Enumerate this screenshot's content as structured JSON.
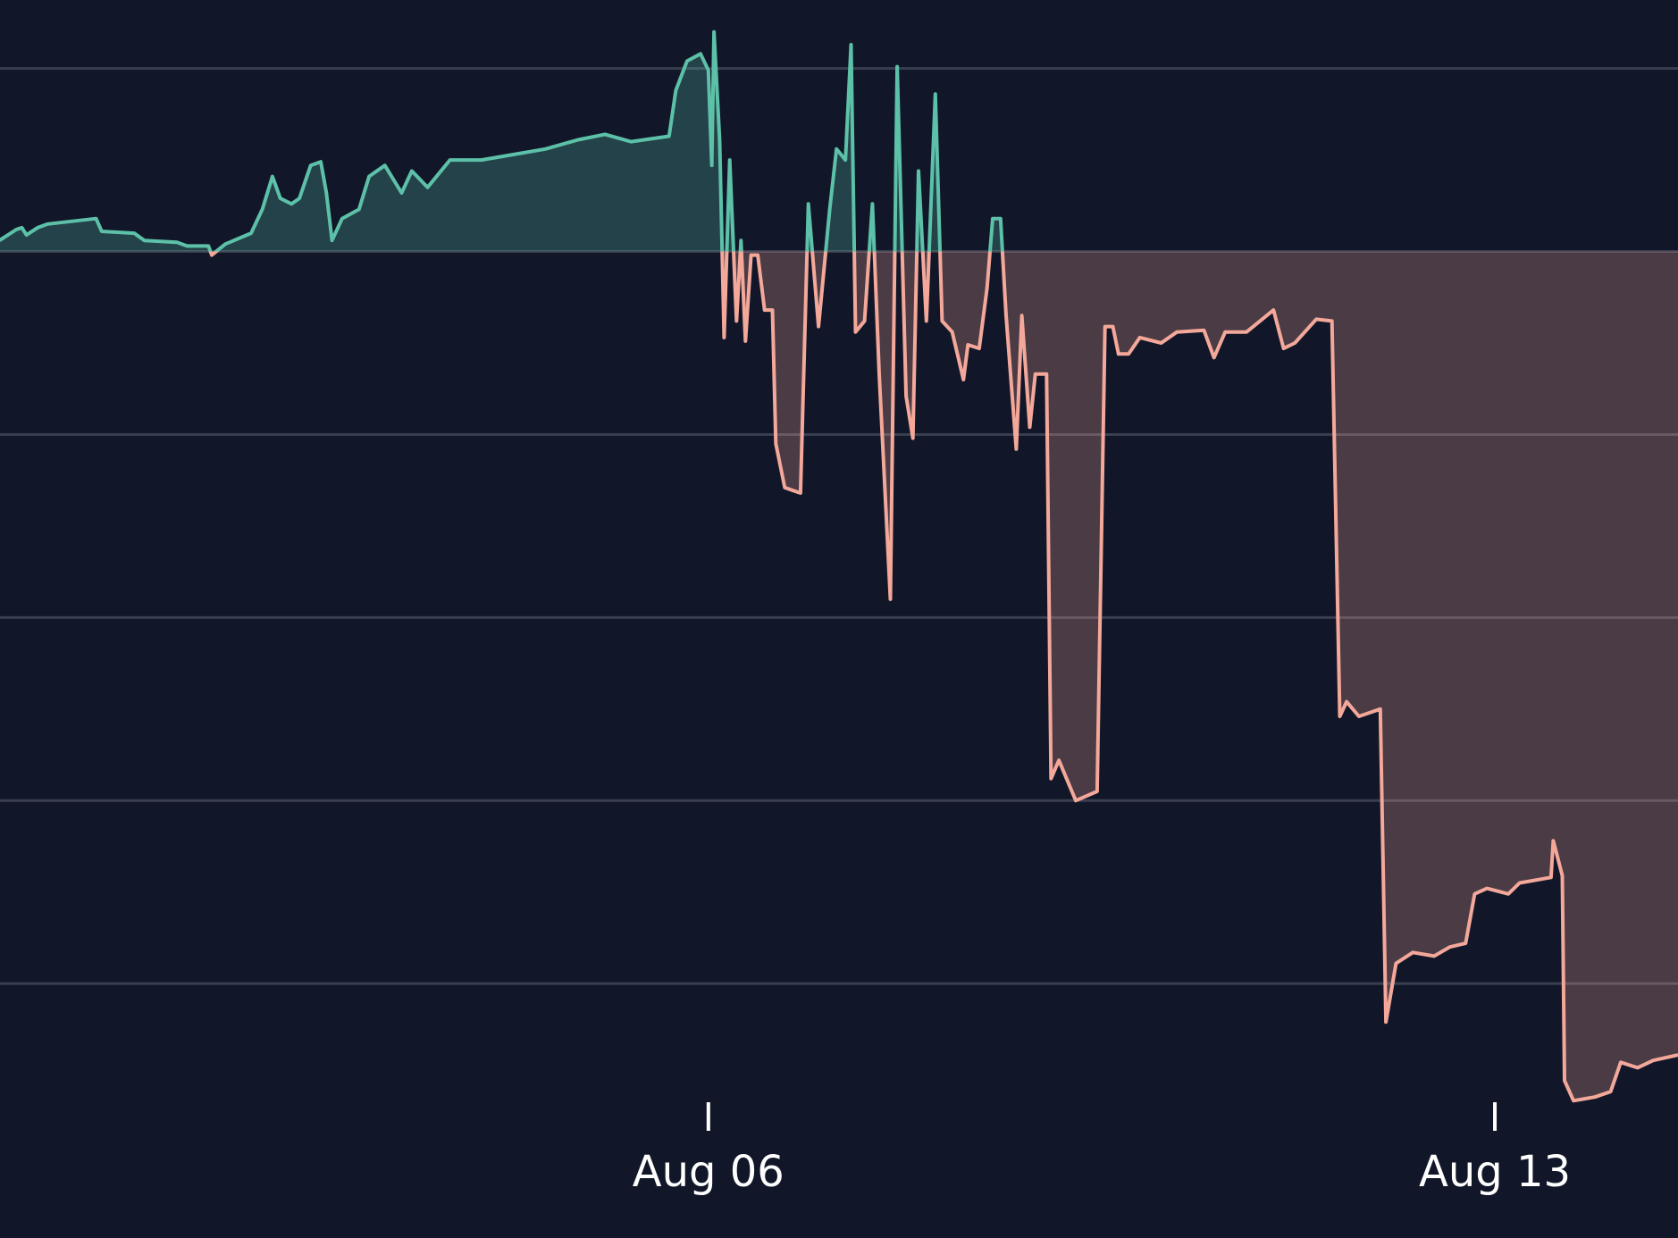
{
  "chart_data": {
    "type": "line",
    "x": [
      -0.31,
      -0.16,
      -0.11,
      -0.07,
      0.03,
      0.12,
      0.55,
      0.6,
      0.89,
      0.98,
      1.27,
      1.36,
      1.55,
      1.58,
      1.7,
      1.93,
      2.03,
      2.12,
      2.19,
      2.29,
      2.36,
      2.46,
      2.55,
      2.6,
      2.65,
      2.74,
      2.89,
      2.98,
      3.12,
      3.27,
      3.36,
      3.5,
      3.7,
      3.98,
      4.27,
      4.55,
      4.84,
      5.08,
      5.31,
      5.65,
      5.71,
      5.81,
      5.93,
      6.0,
      6.03,
      6.05,
      6.1,
      6.14,
      6.19,
      6.25,
      6.29,
      6.33,
      6.38,
      6.44,
      6.5,
      6.57,
      6.6,
      6.68,
      6.82,
      6.89,
      6.98,
      7.08,
      7.14,
      7.22,
      7.27,
      7.31,
      7.39,
      7.46,
      7.52,
      7.62,
      7.68,
      7.76,
      7.82,
      7.87,
      7.94,
      8.02,
      8.08,
      8.17,
      8.27,
      8.31,
      8.41,
      8.48,
      8.53,
      8.6,
      8.65,
      8.74,
      8.79,
      8.86,
      8.91,
      9.01,
      9.05,
      9.12,
      9.27,
      9.46,
      9.53,
      9.6,
      9.65,
      9.74,
      9.84,
      10.03,
      10.17,
      10.41,
      10.5,
      10.6,
      10.79,
      11.03,
      11.12,
      11.22,
      11.41,
      11.55,
      11.62,
      11.68,
      11.79,
      11.98,
      12.03,
      12.12,
      12.27,
      12.46,
      12.6,
      12.74,
      12.82,
      12.93,
      13.12,
      13.22,
      13.5,
      13.52,
      13.6,
      13.62,
      13.7,
      13.89,
      14.03,
      14.12,
      14.27,
      14.41,
      14.63
    ],
    "values": [
      0.06,
      0.12,
      0.13,
      0.09,
      0.13,
      0.15,
      0.18,
      0.11,
      0.1,
      0.06,
      0.05,
      0.03,
      0.03,
      -0.02,
      0.04,
      0.1,
      0.23,
      0.41,
      0.29,
      0.26,
      0.29,
      0.47,
      0.49,
      0.32,
      0.06,
      0.18,
      0.23,
      0.41,
      0.47,
      0.32,
      0.44,
      0.35,
      0.5,
      0.5,
      0.53,
      0.56,
      0.61,
      0.64,
      0.6,
      0.63,
      0.88,
      1.04,
      1.08,
      0.99,
      0.47,
      1.2,
      0.61,
      -0.47,
      0.5,
      -0.38,
      0.06,
      -0.49,
      -0.02,
      -0.02,
      -0.32,
      -0.32,
      -1.05,
      -1.29,
      -1.32,
      0.26,
      -0.41,
      0.23,
      0.56,
      0.5,
      1.13,
      -0.44,
      -0.38,
      0.26,
      -0.67,
      -1.9,
      1.01,
      -0.79,
      -1.02,
      0.44,
      -0.38,
      0.86,
      -0.38,
      -0.44,
      -0.7,
      -0.51,
      -0.53,
      -0.2,
      0.18,
      0.18,
      -0.35,
      -1.08,
      -0.35,
      -0.96,
      -0.67,
      -0.67,
      -2.88,
      -2.78,
      -3.0,
      -2.95,
      -0.41,
      -0.41,
      -0.56,
      -0.56,
      -0.47,
      -0.5,
      -0.44,
      -0.43,
      -0.58,
      -0.44,
      -0.44,
      -0.32,
      -0.53,
      -0.5,
      -0.37,
      -0.38,
      -2.54,
      -2.46,
      -2.54,
      -2.5,
      -4.21,
      -3.89,
      -3.83,
      -3.85,
      -3.8,
      -3.78,
      -3.51,
      -3.48,
      -3.51,
      -3.45,
      -3.42,
      -3.22,
      -3.41,
      -4.53,
      -4.64,
      -4.62,
      -4.59,
      -4.43,
      -4.46,
      -4.42,
      -4.39
    ],
    "baseline": 0,
    "color_above": "#5cc1a8",
    "color_below": "#f4a89a",
    "xlim": [
      -0.305,
      14.63
    ],
    "ylim": [
      -5.39,
      1.374
    ],
    "xticks": [
      {
        "value": 6,
        "label": "Aug 06"
      },
      {
        "value": 13,
        "label": "Aug 13"
      }
    ],
    "yticks": [
      1,
      0,
      -1,
      -2,
      -3,
      -4
    ],
    "ytick_labels": false,
    "grid": true
  }
}
